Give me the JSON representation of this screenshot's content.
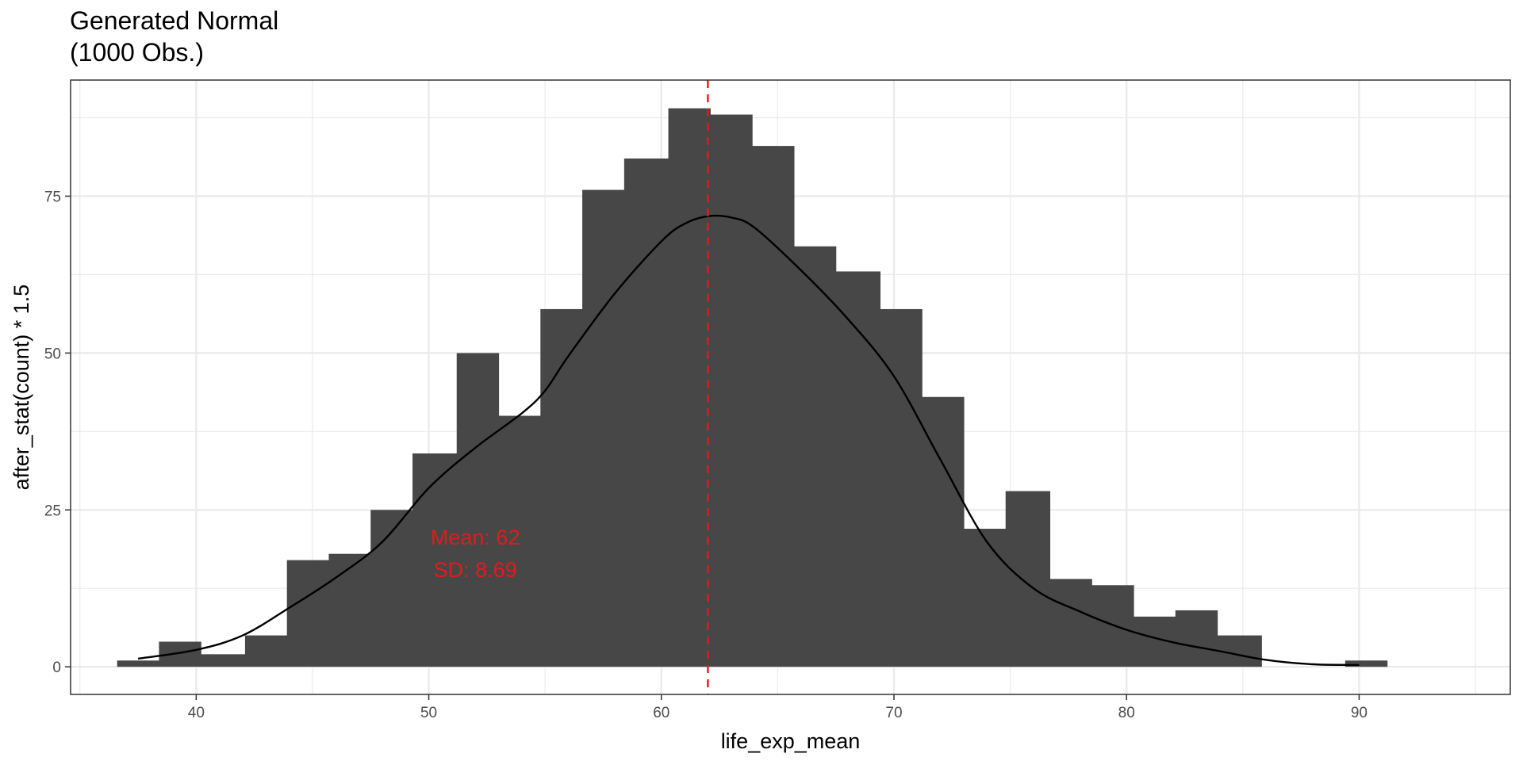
{
  "chart_data": {
    "type": "bar",
    "subtype": "histogram",
    "title_lines": [
      "Generated Normal",
      "(1000 Obs.)"
    ],
    "xlabel": "life_exp_mean",
    "ylabel": "after_stat(count) * 1.5",
    "xlim": [
      34.6,
      96.5
    ],
    "ylim": [
      -4.4,
      93.5
    ],
    "x_ticks": [
      40,
      50,
      60,
      70,
      80,
      90
    ],
    "y_ticks": [
      0,
      25,
      50,
      75
    ],
    "grid": true,
    "bin_width": 1.82,
    "bins": [
      {
        "x0": 36.6,
        "x1": 38.4,
        "value": 1
      },
      {
        "x0": 38.4,
        "x1": 40.2,
        "value": 4
      },
      {
        "x0": 40.2,
        "x1": 42.1,
        "value": 2
      },
      {
        "x0": 42.1,
        "x1": 43.9,
        "value": 5
      },
      {
        "x0": 43.9,
        "x1": 45.7,
        "value": 17
      },
      {
        "x0": 45.7,
        "x1": 47.5,
        "value": 18
      },
      {
        "x0": 47.5,
        "x1": 49.3,
        "value": 25
      },
      {
        "x0": 49.3,
        "x1": 51.2,
        "value": 34
      },
      {
        "x0": 51.2,
        "x1": 53.0,
        "value": 50
      },
      {
        "x0": 53.0,
        "x1": 54.8,
        "value": 40
      },
      {
        "x0": 54.8,
        "x1": 56.6,
        "value": 57
      },
      {
        "x0": 56.6,
        "x1": 58.4,
        "value": 76
      },
      {
        "x0": 58.4,
        "x1": 60.3,
        "value": 81
      },
      {
        "x0": 60.3,
        "x1": 62.1,
        "value": 89
      },
      {
        "x0": 62.1,
        "x1": 63.9,
        "value": 88
      },
      {
        "x0": 63.9,
        "x1": 65.7,
        "value": 83
      },
      {
        "x0": 65.7,
        "x1": 67.5,
        "value": 67
      },
      {
        "x0": 67.5,
        "x1": 69.4,
        "value": 63
      },
      {
        "x0": 69.4,
        "x1": 71.2,
        "value": 57
      },
      {
        "x0": 71.2,
        "x1": 73.0,
        "value": 43
      },
      {
        "x0": 73.0,
        "x1": 74.8,
        "value": 22
      },
      {
        "x0": 74.8,
        "x1": 76.7,
        "value": 28
      },
      {
        "x0": 76.7,
        "x1": 78.5,
        "value": 14
      },
      {
        "x0": 78.5,
        "x1": 80.3,
        "value": 13
      },
      {
        "x0": 80.3,
        "x1": 82.1,
        "value": 8
      },
      {
        "x0": 82.1,
        "x1": 83.9,
        "value": 9
      },
      {
        "x0": 83.9,
        "x1": 85.8,
        "value": 5
      },
      {
        "x0": 85.8,
        "x1": 87.6,
        "value": 0
      },
      {
        "x0": 87.6,
        "x1": 89.4,
        "value": 0
      },
      {
        "x0": 89.4,
        "x1": 91.2,
        "value": 1
      }
    ],
    "density_curve": {
      "x": [
        37.5,
        40,
        42,
        44,
        46,
        48,
        50,
        52,
        54,
        55,
        56,
        58,
        60,
        61,
        62,
        63,
        64,
        66,
        68,
        70,
        72,
        74,
        76,
        78,
        80,
        82,
        84,
        86,
        88,
        90
      ],
      "y": [
        1.3,
        2.7,
        5,
        9.4,
        14.2,
        19.9,
        28.5,
        34.9,
        40.4,
        44,
        49.5,
        59.5,
        67.8,
        70.6,
        71.8,
        71.6,
        70,
        63.2,
        55.5,
        46.3,
        33,
        19.9,
        12.5,
        8.8,
        5.9,
        3.9,
        2.5,
        1.1,
        0.4,
        0.3
      ]
    },
    "mean_line": {
      "x": 62,
      "style": "dashed",
      "color": "#e31a1c"
    },
    "annotations": {
      "mean_text": "Mean: 62",
      "sd_text": "SD: 8.69",
      "mean_at": {
        "x": 52,
        "y": 19.5
      },
      "sd_at": {
        "x": 52,
        "y": 14.3
      }
    },
    "colors": {
      "bar_fill": "#474747",
      "curve": "#000000",
      "annotation": "#e31a1c",
      "grid": "#ebebeb",
      "panel_border": "#333333"
    }
  }
}
